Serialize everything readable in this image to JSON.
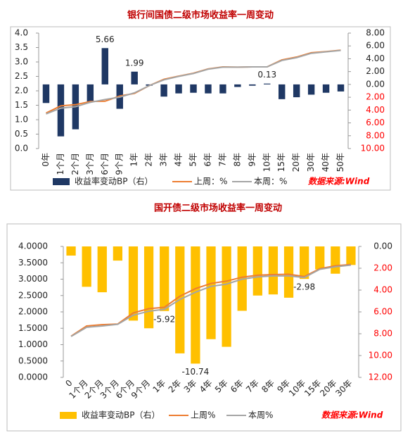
{
  "chart_data": [
    {
      "type": "combo",
      "title": "银行间国债二级市场收益率一周变动",
      "source": "数据来源:Wind",
      "categories": [
        "0年",
        "1个月",
        "2个月",
        "3个月",
        "6个月",
        "9个月",
        "1年",
        "2年",
        "3年",
        "4年",
        "5年",
        "6年",
        "7年",
        "8年",
        "9年",
        "10年",
        "15年",
        "20年",
        "30年",
        "40年",
        "50年"
      ],
      "series": [
        {
          "name": "收益率变动BP（右）",
          "type": "bar",
          "axis": "y2",
          "color": "#1f3864",
          "values": [
            -2.9,
            -8.1,
            -7.0,
            -2.7,
            5.66,
            -3.8,
            1.99,
            -0.2,
            -1.9,
            -1.4,
            -1.3,
            -1.4,
            -1.4,
            -0.4,
            -0.2,
            0.13,
            -2.3,
            -2.0,
            -1.6,
            -1.3,
            -1.1
          ],
          "value_labels": [
            null,
            null,
            null,
            null,
            "5.66",
            null,
            "1.99",
            null,
            null,
            null,
            null,
            null,
            null,
            null,
            null,
            "0.13",
            null,
            null,
            null,
            null,
            null
          ]
        },
        {
          "name": "上周：%",
          "type": "line",
          "color": "#ed7d31",
          "values": [
            1.23,
            1.48,
            1.52,
            1.63,
            1.64,
            1.82,
            1.91,
            2.18,
            2.4,
            2.51,
            2.61,
            2.76,
            2.83,
            2.82,
            2.83,
            2.83,
            3.07,
            3.17,
            3.32,
            3.36,
            3.41
          ]
        },
        {
          "name": "本周：%",
          "type": "line",
          "color": "#a5a5a5",
          "values": [
            1.2,
            1.4,
            1.45,
            1.6,
            1.7,
            1.78,
            1.93,
            2.18,
            2.38,
            2.5,
            2.6,
            2.75,
            2.82,
            2.82,
            2.83,
            2.83,
            3.05,
            3.15,
            3.3,
            3.35,
            3.4
          ]
        }
      ],
      "ylim": [
        0,
        4
      ],
      "yticks": [
        {
          "value": 0,
          "label": "0.0"
        },
        {
          "value": 0.5,
          "label": "0.5"
        },
        {
          "value": 1,
          "label": "1.0"
        },
        {
          "value": 1.5,
          "label": "1.5"
        },
        {
          "value": 2,
          "label": "2.0"
        },
        {
          "value": 2.5,
          "label": "2.5"
        },
        {
          "value": 3,
          "label": "3.0"
        },
        {
          "value": 3.5,
          "label": "3.5"
        },
        {
          "value": 4,
          "label": "4.0"
        }
      ],
      "y2lim": [
        -10,
        8
      ],
      "y2ticks": [
        {
          "value": 8,
          "label": "8.00"
        },
        {
          "value": 6,
          "label": "6.00"
        },
        {
          "value": 4,
          "label": "4.00"
        },
        {
          "value": 2,
          "label": "2.00"
        },
        {
          "value": 0,
          "label": "0.00"
        },
        {
          "value": -2,
          "label": "2.00"
        },
        {
          "value": -4,
          "label": "4.00"
        },
        {
          "value": -6,
          "label": "6.00"
        },
        {
          "value": -8,
          "label": "8.00"
        },
        {
          "value": -10,
          "label": "10.00"
        }
      ]
    },
    {
      "type": "combo",
      "title": "国开债二级市场收益率一周变动",
      "source": "数据来源:Wind",
      "categories": [
        "0",
        "1个月",
        "2个月",
        "3个月",
        "6个月",
        "9个月",
        "1年",
        "2年",
        "3年",
        "4年",
        "5年",
        "6年",
        "7年",
        "8年",
        "9年",
        "10年",
        "15年",
        "20年",
        "30年"
      ],
      "series": [
        {
          "name": "收益率变动BP（右）",
          "type": "bar",
          "axis": "y2",
          "color": "#ffc000",
          "values": [
            -0.84,
            -3.7,
            -4.2,
            -1.3,
            -6.8,
            -7.5,
            -5.92,
            -9.8,
            -10.74,
            -8.5,
            -9.2,
            -5.9,
            -4.5,
            -4.4,
            -4.7,
            -2.98,
            -2.1,
            -2.5,
            -1.7
          ],
          "value_labels": [
            null,
            null,
            null,
            null,
            null,
            null,
            "-5.92",
            null,
            "-10.74",
            null,
            null,
            null,
            null,
            null,
            null,
            "-2.98",
            null,
            null,
            null
          ]
        },
        {
          "name": "上周%",
          "type": "line",
          "color": "#ed7d31",
          "values": [
            1.26,
            1.57,
            1.61,
            1.63,
            1.97,
            2.1,
            2.14,
            2.48,
            2.71,
            2.87,
            2.94,
            3.06,
            3.12,
            3.14,
            3.15,
            3.08,
            3.32,
            3.41,
            3.45
          ]
        },
        {
          "name": "本周%",
          "type": "line",
          "color": "#a5a5a5",
          "values": [
            1.25,
            1.53,
            1.57,
            1.62,
            1.9,
            2.02,
            2.08,
            2.38,
            2.6,
            2.78,
            2.85,
            3.0,
            3.07,
            3.1,
            3.1,
            3.05,
            3.3,
            3.38,
            3.43
          ]
        }
      ],
      "ylim": [
        0,
        4
      ],
      "yticks": [
        {
          "value": 0,
          "label": "0.0000"
        },
        {
          "value": 0.5,
          "label": "0.5000"
        },
        {
          "value": 1,
          "label": "1.0000"
        },
        {
          "value": 1.5,
          "label": "1.5000"
        },
        {
          "value": 2,
          "label": "2.0000"
        },
        {
          "value": 2.5,
          "label": "2.5000"
        },
        {
          "value": 3,
          "label": "3.0000"
        },
        {
          "value": 3.5,
          "label": "3.5000"
        },
        {
          "value": 4,
          "label": "4.0000"
        }
      ],
      "y2lim": [
        -12,
        0
      ],
      "y2ticks": [
        {
          "value": 0,
          "label": "0.00"
        },
        {
          "value": -2,
          "label": "2.00"
        },
        {
          "value": -4,
          "label": "4.00"
        },
        {
          "value": -6,
          "label": "6.00"
        },
        {
          "value": -8,
          "label": "8.00"
        },
        {
          "value": -10,
          "label": "10.00"
        },
        {
          "value": -12,
          "label": "12.00"
        }
      ]
    }
  ]
}
